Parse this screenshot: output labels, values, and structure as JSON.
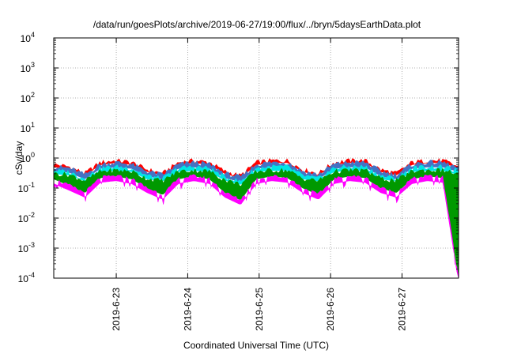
{
  "chart_data": {
    "type": "area",
    "title": "/data/run/goesPlots/archive/2019-06-27/19:00/flux/../bryn/5daysEarthData.plot",
    "xlabel": "Coordinated Universal Time (UTC)",
    "ylabel": "cSv/day",
    "yscale": "log",
    "ylim": [
      0.0001,
      10000
    ],
    "y_ticks": [
      {
        "value": 0.0001,
        "base": "10",
        "exp": "-4"
      },
      {
        "value": 0.001,
        "base": "10",
        "exp": "-3"
      },
      {
        "value": 0.01,
        "base": "10",
        "exp": "-2"
      },
      {
        "value": 0.1,
        "base": "10",
        "exp": "-1"
      },
      {
        "value": 1,
        "base": "10",
        "exp": "0"
      },
      {
        "value": 10,
        "base": "10",
        "exp": "1"
      },
      {
        "value": 100,
        "base": "10",
        "exp": "2"
      },
      {
        "value": 1000,
        "base": "10",
        "exp": "3"
      },
      {
        "value": 10000,
        "base": "10",
        "exp": "4"
      }
    ],
    "xlim": [
      "2019-06-22 03:00",
      "2019-06-27 19:00"
    ],
    "x_ticks": [
      "2019-6-23",
      "2019-6-24",
      "2019-6-25",
      "2019-6-26",
      "2019-6-27"
    ],
    "grid": true,
    "series": [
      {
        "color": "#ff0000",
        "values": [
          0.6,
          0.5,
          0.3,
          0.7,
          0.8,
          0.7,
          0.4,
          0.3,
          0.7,
          0.8,
          0.7,
          0.35,
          0.25,
          0.7,
          0.8,
          0.8,
          0.4,
          0.3,
          0.7,
          0.8,
          0.8,
          0.4,
          0.3,
          0.7,
          0.8,
          0.8,
          0.5
        ]
      },
      {
        "color": "#4472c4",
        "values": [
          0.5,
          0.45,
          0.27,
          0.6,
          0.7,
          0.6,
          0.35,
          0.27,
          0.6,
          0.7,
          0.6,
          0.3,
          0.22,
          0.6,
          0.7,
          0.7,
          0.35,
          0.27,
          0.6,
          0.7,
          0.7,
          0.35,
          0.27,
          0.6,
          0.7,
          0.7,
          0.45
        ]
      },
      {
        "color": "#00e5e5",
        "values": [
          0.38,
          0.33,
          0.2,
          0.45,
          0.5,
          0.45,
          0.25,
          0.2,
          0.45,
          0.5,
          0.45,
          0.22,
          0.16,
          0.45,
          0.5,
          0.5,
          0.25,
          0.2,
          0.45,
          0.5,
          0.5,
          0.25,
          0.2,
          0.45,
          0.5,
          0.5,
          0.35
        ]
      },
      {
        "color": "#009900",
        "values": [
          0.3,
          0.27,
          0.17,
          0.35,
          0.38,
          0.35,
          0.2,
          0.17,
          0.35,
          0.38,
          0.35,
          0.18,
          0.13,
          0.35,
          0.38,
          0.38,
          0.2,
          0.17,
          0.35,
          0.38,
          0.38,
          0.2,
          0.17,
          0.35,
          0.38,
          0.38,
          0.28
        ]
      },
      {
        "color": "#ff00ff",
        "values": [
          0.2,
          0.12,
          0.07,
          0.22,
          0.25,
          0.2,
          0.1,
          0.06,
          0.2,
          0.25,
          0.2,
          0.07,
          0.04,
          0.2,
          0.25,
          0.22,
          0.1,
          0.06,
          0.2,
          0.25,
          0.22,
          0.1,
          0.07,
          0.2,
          0.25,
          0.22,
          0.0001
        ]
      }
    ]
  }
}
